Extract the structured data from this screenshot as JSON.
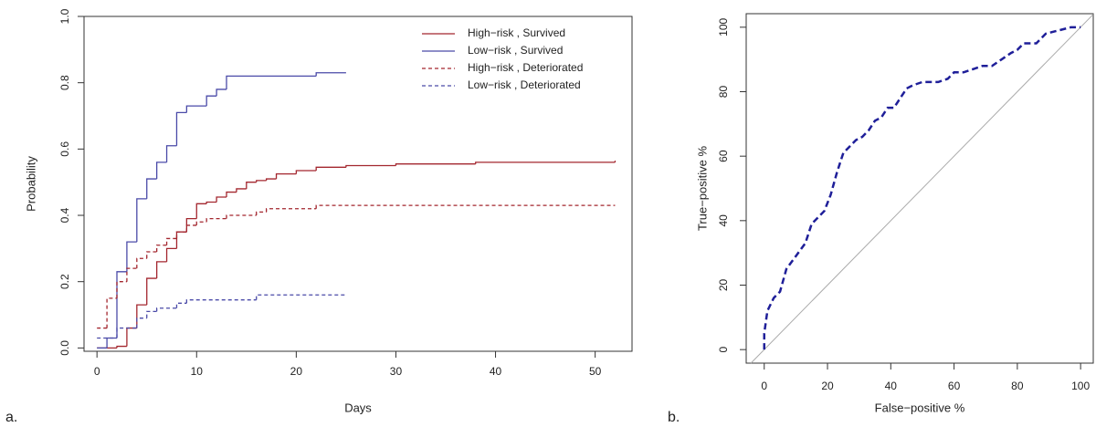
{
  "chart_data": [
    {
      "type": "step",
      "panel_label": "a.",
      "xlabel": "Days",
      "ylabel": "Probability",
      "xlim": [
        -1.3,
        53.7
      ],
      "ylim": [
        -0.01,
        1.0
      ],
      "xticks": [
        0,
        10,
        20,
        30,
        40,
        50
      ],
      "yticks": [
        {
          "value": 0,
          "label": "0.0"
        },
        0.2,
        0.4,
        0.6,
        0.8,
        {
          "value": 1,
          "label": "1.0"
        }
      ],
      "legend": "topright",
      "series": [
        {
          "name": "High−risk , Survived",
          "color": "#a3262e",
          "dash": false,
          "x": [
            0,
            2,
            3,
            4,
            5,
            6,
            7,
            8,
            9,
            10,
            11,
            12,
            13,
            14,
            15,
            16,
            17,
            18,
            20,
            22,
            25,
            30,
            38,
            52
          ],
          "values": [
            0,
            0.005,
            0.06,
            0.13,
            0.21,
            0.26,
            0.3,
            0.35,
            0.39,
            0.435,
            0.44,
            0.455,
            0.47,
            0.48,
            0.5,
            0.505,
            0.51,
            0.525,
            0.535,
            0.545,
            0.55,
            0.555,
            0.56,
            0.565
          ]
        },
        {
          "name": "Low−risk , Survived",
          "color": "#4a4aa8",
          "dash": false,
          "x": [
            0,
            1,
            2,
            3,
            4,
            5,
            6,
            7,
            8,
            9,
            11,
            12,
            13,
            22,
            25
          ],
          "values": [
            0,
            0.03,
            0.23,
            0.32,
            0.45,
            0.51,
            0.56,
            0.61,
            0.71,
            0.73,
            0.76,
            0.78,
            0.82,
            0.83,
            0.83
          ]
        },
        {
          "name": "High−risk , Deteriorated",
          "color": "#a3262e",
          "dash": true,
          "x": [
            0,
            1,
            2,
            3,
            4,
            5,
            6,
            7,
            8,
            9,
            10,
            11,
            13,
            16,
            17,
            22,
            52
          ],
          "values": [
            0.06,
            0.15,
            0.2,
            0.24,
            0.27,
            0.29,
            0.31,
            0.33,
            0.35,
            0.37,
            0.38,
            0.39,
            0.4,
            0.41,
            0.42,
            0.43,
            0.43
          ]
        },
        {
          "name": "Low−risk , Deteriorated",
          "color": "#4a4aa8",
          "dash": true,
          "x": [
            0,
            2,
            4,
            5,
            6,
            8,
            9,
            16,
            25
          ],
          "values": [
            0.03,
            0.06,
            0.09,
            0.11,
            0.12,
            0.135,
            0.145,
            0.16,
            0.16
          ]
        }
      ]
    },
    {
      "type": "line",
      "panel_label": "b.",
      "xlabel": "False−positive %",
      "ylabel": "True−positive %",
      "xlim": [
        -5.7,
        104
      ],
      "ylim": [
        -4.2,
        104.2
      ],
      "xticks": [
        0,
        20,
        40,
        60,
        80,
        100
      ],
      "yticks": [
        0,
        20,
        40,
        60,
        80,
        100
      ],
      "diagonal": true,
      "series": [
        {
          "color": "#1f1f99",
          "dash": true,
          "x": [
            0,
            0,
            1,
            3,
            5,
            7,
            10,
            13,
            15,
            17,
            19,
            21,
            23,
            25,
            27,
            29,
            31,
            33,
            35,
            37,
            39,
            41,
            43,
            45,
            47,
            50,
            55,
            58,
            60,
            63,
            66,
            69,
            72,
            75,
            78,
            80,
            82,
            86,
            89,
            93,
            97,
            100
          ],
          "values": [
            0,
            5,
            12,
            16,
            18,
            25,
            29,
            33,
            39,
            41,
            43,
            48,
            55,
            61,
            63,
            65,
            66,
            68,
            71,
            72,
            75,
            75,
            78,
            81,
            82,
            83,
            83,
            84,
            86,
            86,
            87,
            88,
            88,
            90,
            92,
            93,
            95,
            95,
            98,
            99,
            100,
            100
          ]
        }
      ]
    }
  ]
}
